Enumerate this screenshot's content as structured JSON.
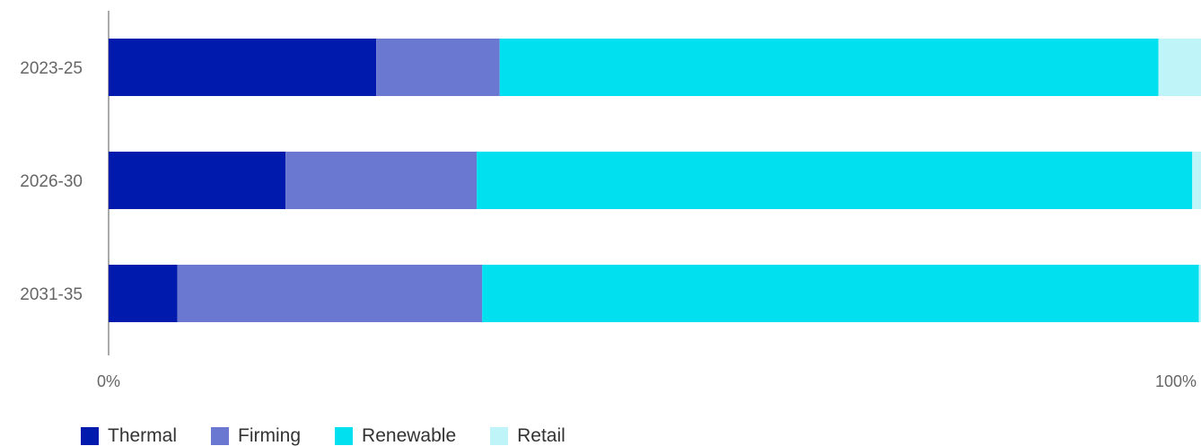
{
  "chart_data": {
    "type": "bar",
    "orientation": "horizontal",
    "stacked": true,
    "categories": [
      "2023-25",
      "2026-30",
      "2031-35"
    ],
    "series": [
      {
        "name": "Thermal",
        "color": "#001AAE",
        "values": [
          24.5,
          16.2,
          6.3
        ]
      },
      {
        "name": "Firming",
        "color": "#6A78D1",
        "values": [
          11.3,
          17.5,
          27.9
        ]
      },
      {
        "name": "Renewable",
        "color": "#00E0EE",
        "values": [
          60.3,
          65.5,
          65.6
        ]
      },
      {
        "name": "Retail",
        "color": "#BFF4F8",
        "values": [
          3.9,
          0.8,
          0.2
        ]
      }
    ],
    "xlim": [
      0,
      100
    ],
    "x_ticks": [
      "0%",
      "100%"
    ],
    "grid": false,
    "legend_position": "bottom-left"
  }
}
